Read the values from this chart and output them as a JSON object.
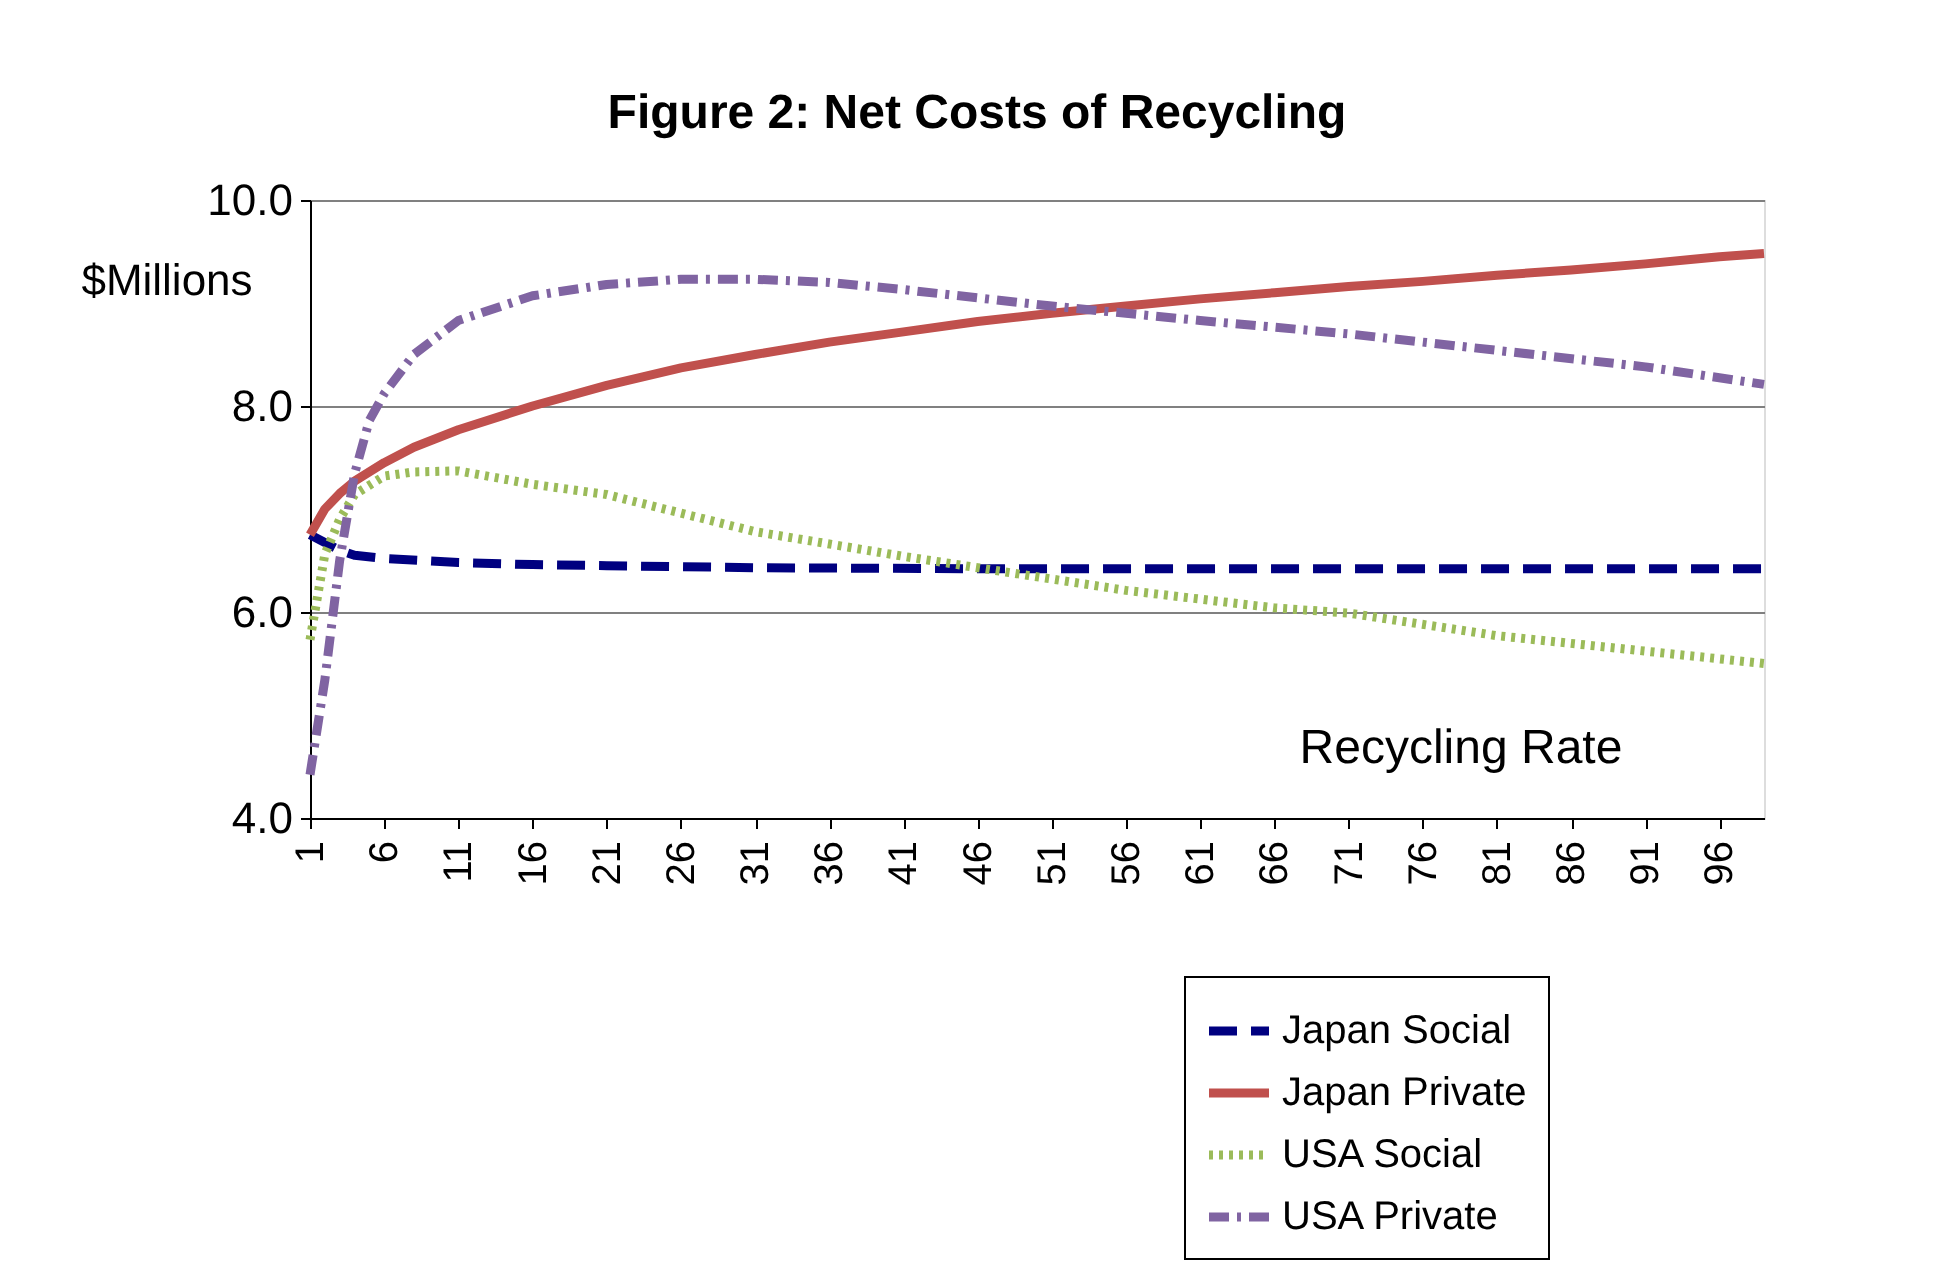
{
  "chart_data": {
    "type": "line",
    "title": "Figure 2: Net Costs of Recycling",
    "xlabel": "Recycling Rate",
    "ylabel": "$Millions",
    "xlim": [
      1,
      99
    ],
    "xticks": [
      1,
      6,
      11,
      16,
      21,
      26,
      31,
      36,
      41,
      46,
      51,
      56,
      61,
      66,
      71,
      76,
      81,
      86,
      91,
      96
    ],
    "ylim": [
      4.0,
      10.0
    ],
    "yticks": [
      {
        "value": 4,
        "label": "4.0"
      },
      {
        "value": 6,
        "label": "6.0"
      },
      {
        "value": 8,
        "label": "8.0"
      },
      {
        "value": 10,
        "label": "10.0"
      }
    ],
    "grid": "y",
    "legend": "bottom right",
    "series": [
      {
        "name": "Japan Social",
        "color": "#000080",
        "line_style": "dashed",
        "x": [
          1,
          3,
          4,
          6,
          11,
          16,
          21,
          31,
          46,
          61,
          76,
          99
        ],
        "values": [
          6.75,
          6.6,
          6.55,
          6.52,
          6.48,
          6.46,
          6.45,
          6.43,
          6.42,
          6.42,
          6.42,
          6.42
        ]
      },
      {
        "name": "Japan Private",
        "color": "#c0504d",
        "line_style": "solid",
        "x": [
          1,
          2,
          3,
          4,
          6,
          8,
          11,
          16,
          21,
          26,
          31,
          36,
          41,
          46,
          51,
          56,
          61,
          66,
          71,
          76,
          81,
          86,
          91,
          96,
          99
        ],
        "values": [
          6.75,
          7.0,
          7.15,
          7.27,
          7.45,
          7.6,
          7.77,
          8.0,
          8.2,
          8.37,
          8.5,
          8.62,
          8.72,
          8.82,
          8.9,
          8.97,
          9.04,
          9.1,
          9.16,
          9.21,
          9.27,
          9.32,
          9.38,
          9.45,
          9.48
        ]
      },
      {
        "name": "USA Social",
        "color": "#9bbb59",
        "line_style": "dotted",
        "x": [
          1,
          2,
          3,
          4,
          6,
          8,
          11,
          16,
          21,
          31,
          41,
          46,
          56,
          66,
          71,
          81,
          91,
          99
        ],
        "values": [
          5.73,
          6.56,
          6.9,
          7.14,
          7.32,
          7.36,
          7.37,
          7.24,
          7.14,
          6.78,
          6.54,
          6.43,
          6.21,
          6.04,
          5.99,
          5.77,
          5.62,
          5.5
        ]
      },
      {
        "name": "USA Private",
        "color": "#8064a2",
        "line_style": "dashdot",
        "x": [
          1,
          2,
          3,
          4,
          5,
          6,
          8,
          11,
          16,
          21,
          26,
          31,
          36,
          41,
          46,
          51,
          56,
          61,
          71,
          81,
          91,
          99
        ],
        "values": [
          4.42,
          5.34,
          6.5,
          7.34,
          7.86,
          8.12,
          8.5,
          8.83,
          9.07,
          9.18,
          9.23,
          9.23,
          9.2,
          9.13,
          9.05,
          8.97,
          8.9,
          8.83,
          8.7,
          8.54,
          8.38,
          8.21
        ]
      }
    ]
  }
}
